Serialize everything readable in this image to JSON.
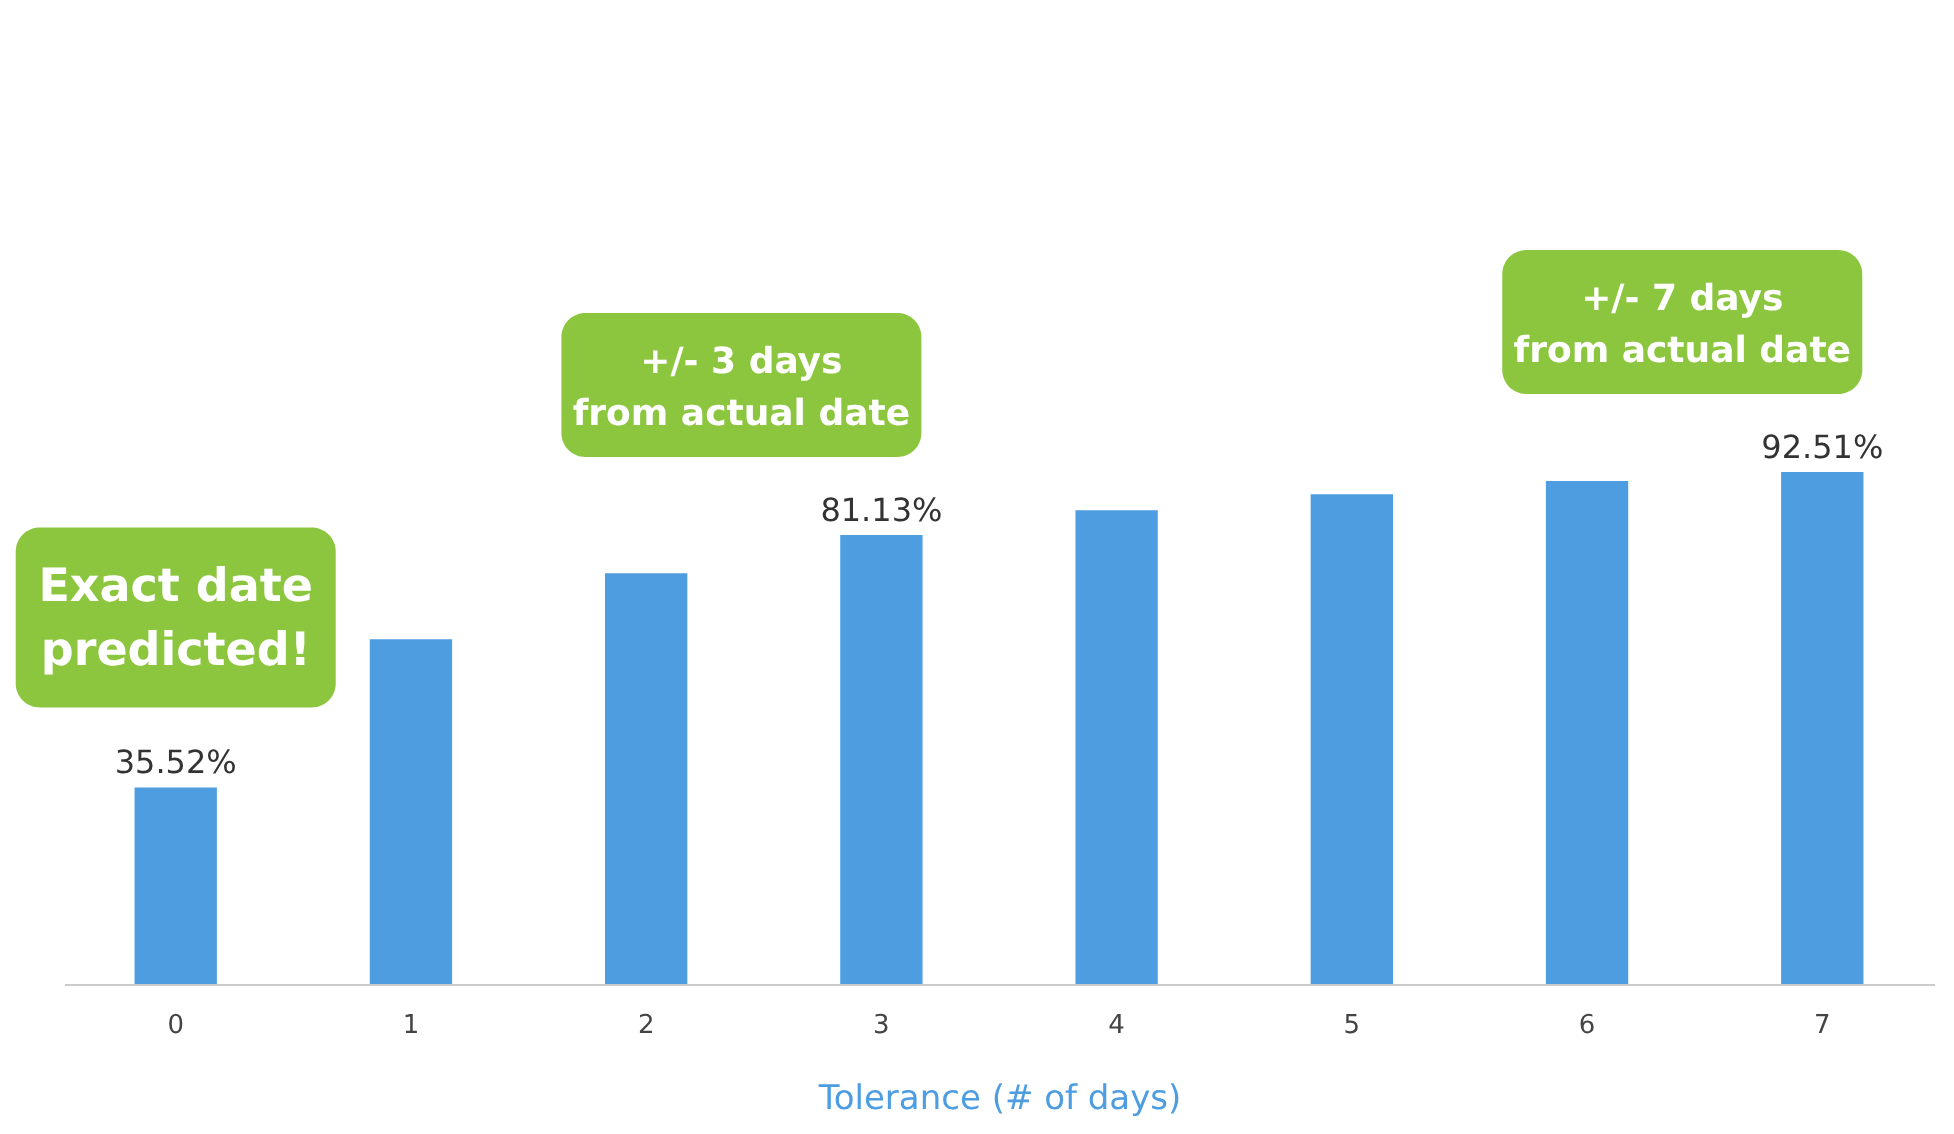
{
  "chart_data": {
    "type": "bar",
    "xlabel": "Tolerance (# of days)",
    "categories": [
      "0",
      "1",
      "2",
      "3",
      "4",
      "5",
      "6",
      "7"
    ],
    "values": [
      35.52,
      62.3,
      74.2,
      81.13,
      85.6,
      88.5,
      90.9,
      92.51
    ],
    "value_labels": [
      "35.52%",
      null,
      null,
      "81.13%",
      null,
      null,
      null,
      "92.51%"
    ],
    "color": "#4d9de0",
    "grid": false,
    "annotations": [
      {
        "text": "Exact date\npredicted!",
        "x": "0",
        "y": 35.52
      },
      {
        "text": "+/- 3 days\nfrom actual date",
        "x": "3",
        "y": 81.13
      },
      {
        "text": "+/- 7 days\nfrom actual date",
        "x": "7",
        "y": 92.51
      }
    ]
  }
}
